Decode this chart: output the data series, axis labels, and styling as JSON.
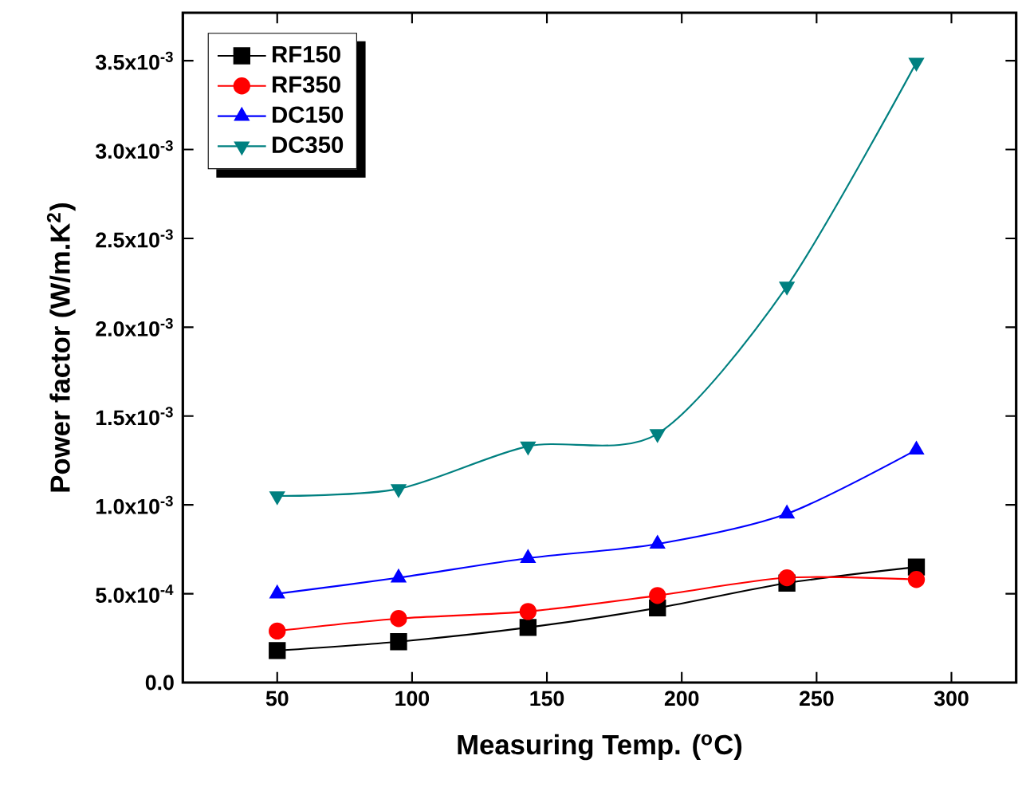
{
  "chart_data": {
    "type": "line",
    "xlabel": "Measuring Temp. ($^{o}$C)",
    "ylabel": "Power factor (W/m.K$^{2}$)",
    "x": [
      50,
      95,
      143,
      191,
      239,
      287
    ],
    "series": [
      {
        "name": "RF150",
        "color": "#000000",
        "marker": "square",
        "values": [
          0.00018,
          0.00023,
          0.00031,
          0.00042,
          0.00056,
          0.00065
        ]
      },
      {
        "name": "RF350",
        "color": "#ff0000",
        "marker": "circle",
        "values": [
          0.00029,
          0.00036,
          0.0004,
          0.00049,
          0.00059,
          0.00058
        ]
      },
      {
        "name": "DC150",
        "color": "#0000ff",
        "marker": "triangle",
        "values": [
          0.0005,
          0.00059,
          0.0007,
          0.00078,
          0.00095,
          0.00131
        ]
      },
      {
        "name": "DC350",
        "color": "#008080",
        "marker": "triangle-down",
        "values": [
          0.00105,
          0.00109,
          0.00133,
          0.0014,
          0.00223,
          0.00349
        ]
      }
    ],
    "xlim": [
      15,
      324
    ],
    "ylim": [
      0,
      0.00377
    ],
    "xticks": [
      50,
      100,
      150,
      200,
      250,
      300
    ],
    "yticks": [
      {
        "value": 0,
        "label": "0.0"
      },
      {
        "value": 0.0005,
        "label": "5.0x10$^{-4}$"
      },
      {
        "value": 0.001,
        "label": "1.0x10$^{-3}$"
      },
      {
        "value": 0.0015,
        "label": "1.5x10$^{-3}$"
      },
      {
        "value": 0.002,
        "label": "2.0x10$^{-3}$"
      },
      {
        "value": 0.0025,
        "label": "2.5x10$^{-3}$"
      },
      {
        "value": 0.003,
        "label": "3.0x10$^{-3}$"
      },
      {
        "value": 0.0035,
        "label": "3.5x10$^{-3}$"
      }
    ],
    "legend": "top left",
    "grid": false,
    "line_style": "solid"
  }
}
